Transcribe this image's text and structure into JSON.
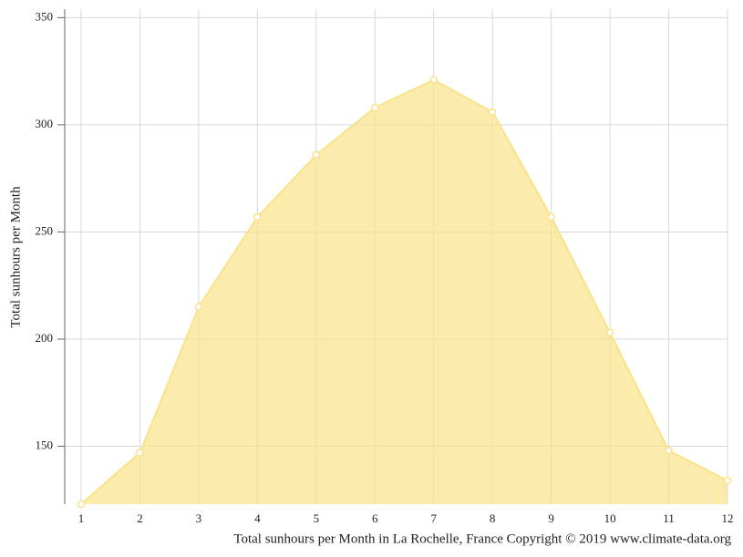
{
  "chart_data": {
    "type": "area",
    "x": [
      1,
      2,
      3,
      4,
      5,
      6,
      7,
      8,
      9,
      10,
      11,
      12
    ],
    "values": [
      123,
      147,
      215,
      257,
      286,
      308,
      321,
      306,
      257,
      203,
      148,
      134
    ],
    "color": "#f9e38a",
    "xlim": [
      1,
      12
    ],
    "xticks": [
      1,
      2,
      3,
      4,
      5,
      6,
      7,
      8,
      9,
      10,
      11,
      12
    ],
    "ylim": [
      123,
      354
    ],
    "yticks": [
      150,
      200,
      250,
      300,
      350
    ],
    "grid": true,
    "y_label": "Total sunhours per Month",
    "caption": "Total sunhours per Month in La Rochelle, France Copyright © 2019 www.climate-data.org"
  }
}
